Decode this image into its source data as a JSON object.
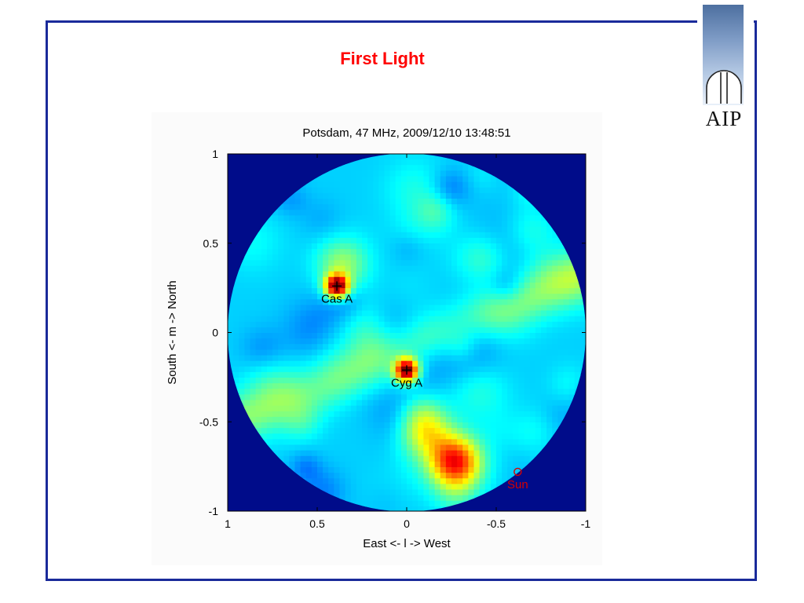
{
  "slide": {
    "title": "First Light"
  },
  "logo": {
    "text": "AIP"
  },
  "colors": {
    "frame": "#1a2a9a",
    "title": "#ff0000",
    "source_label": "#000000",
    "sun_label": "#d80000"
  },
  "chart_data": {
    "type": "heatmap",
    "colormap": "jet",
    "title": "Potsdam, 47 MHz, 2009/12/10 13:48:51",
    "xlabel": "East <- l -> West",
    "ylabel": "South <- m -> North",
    "xlim": [
      1,
      -1
    ],
    "ylim": [
      -1,
      1
    ],
    "xticks": [
      1,
      0.5,
      0,
      -0.5,
      -1
    ],
    "xtick_labels": [
      "1",
      "0.5",
      "0",
      "-0.5",
      "-1"
    ],
    "yticks": [
      1,
      0.5,
      0,
      -0.5,
      -1
    ],
    "ytick_labels": [
      "1",
      "0.5",
      "0",
      "-0.5",
      "-1"
    ],
    "sky_radius": 1,
    "sources": [
      {
        "name": "Cas A",
        "l": 0.39,
        "m": 0.26,
        "marker": "+",
        "intensity": 1.0
      },
      {
        "name": "Cyg A",
        "l": 0.0,
        "m": -0.21,
        "marker": "+",
        "intensity": 1.0
      },
      {
        "name": "Sun",
        "l": -0.62,
        "m": -0.78,
        "marker": "o",
        "intensity": 0.0
      }
    ],
    "extended_emission": [
      {
        "l": -0.27,
        "m": -0.72,
        "intensity": 0.88
      },
      {
        "l": 0.36,
        "m": 0.38,
        "intensity": 0.55
      },
      {
        "l": -0.1,
        "m": -0.55,
        "intensity": 0.6
      },
      {
        "l": 0.2,
        "m": 0.0,
        "intensity": 0.45
      }
    ]
  }
}
